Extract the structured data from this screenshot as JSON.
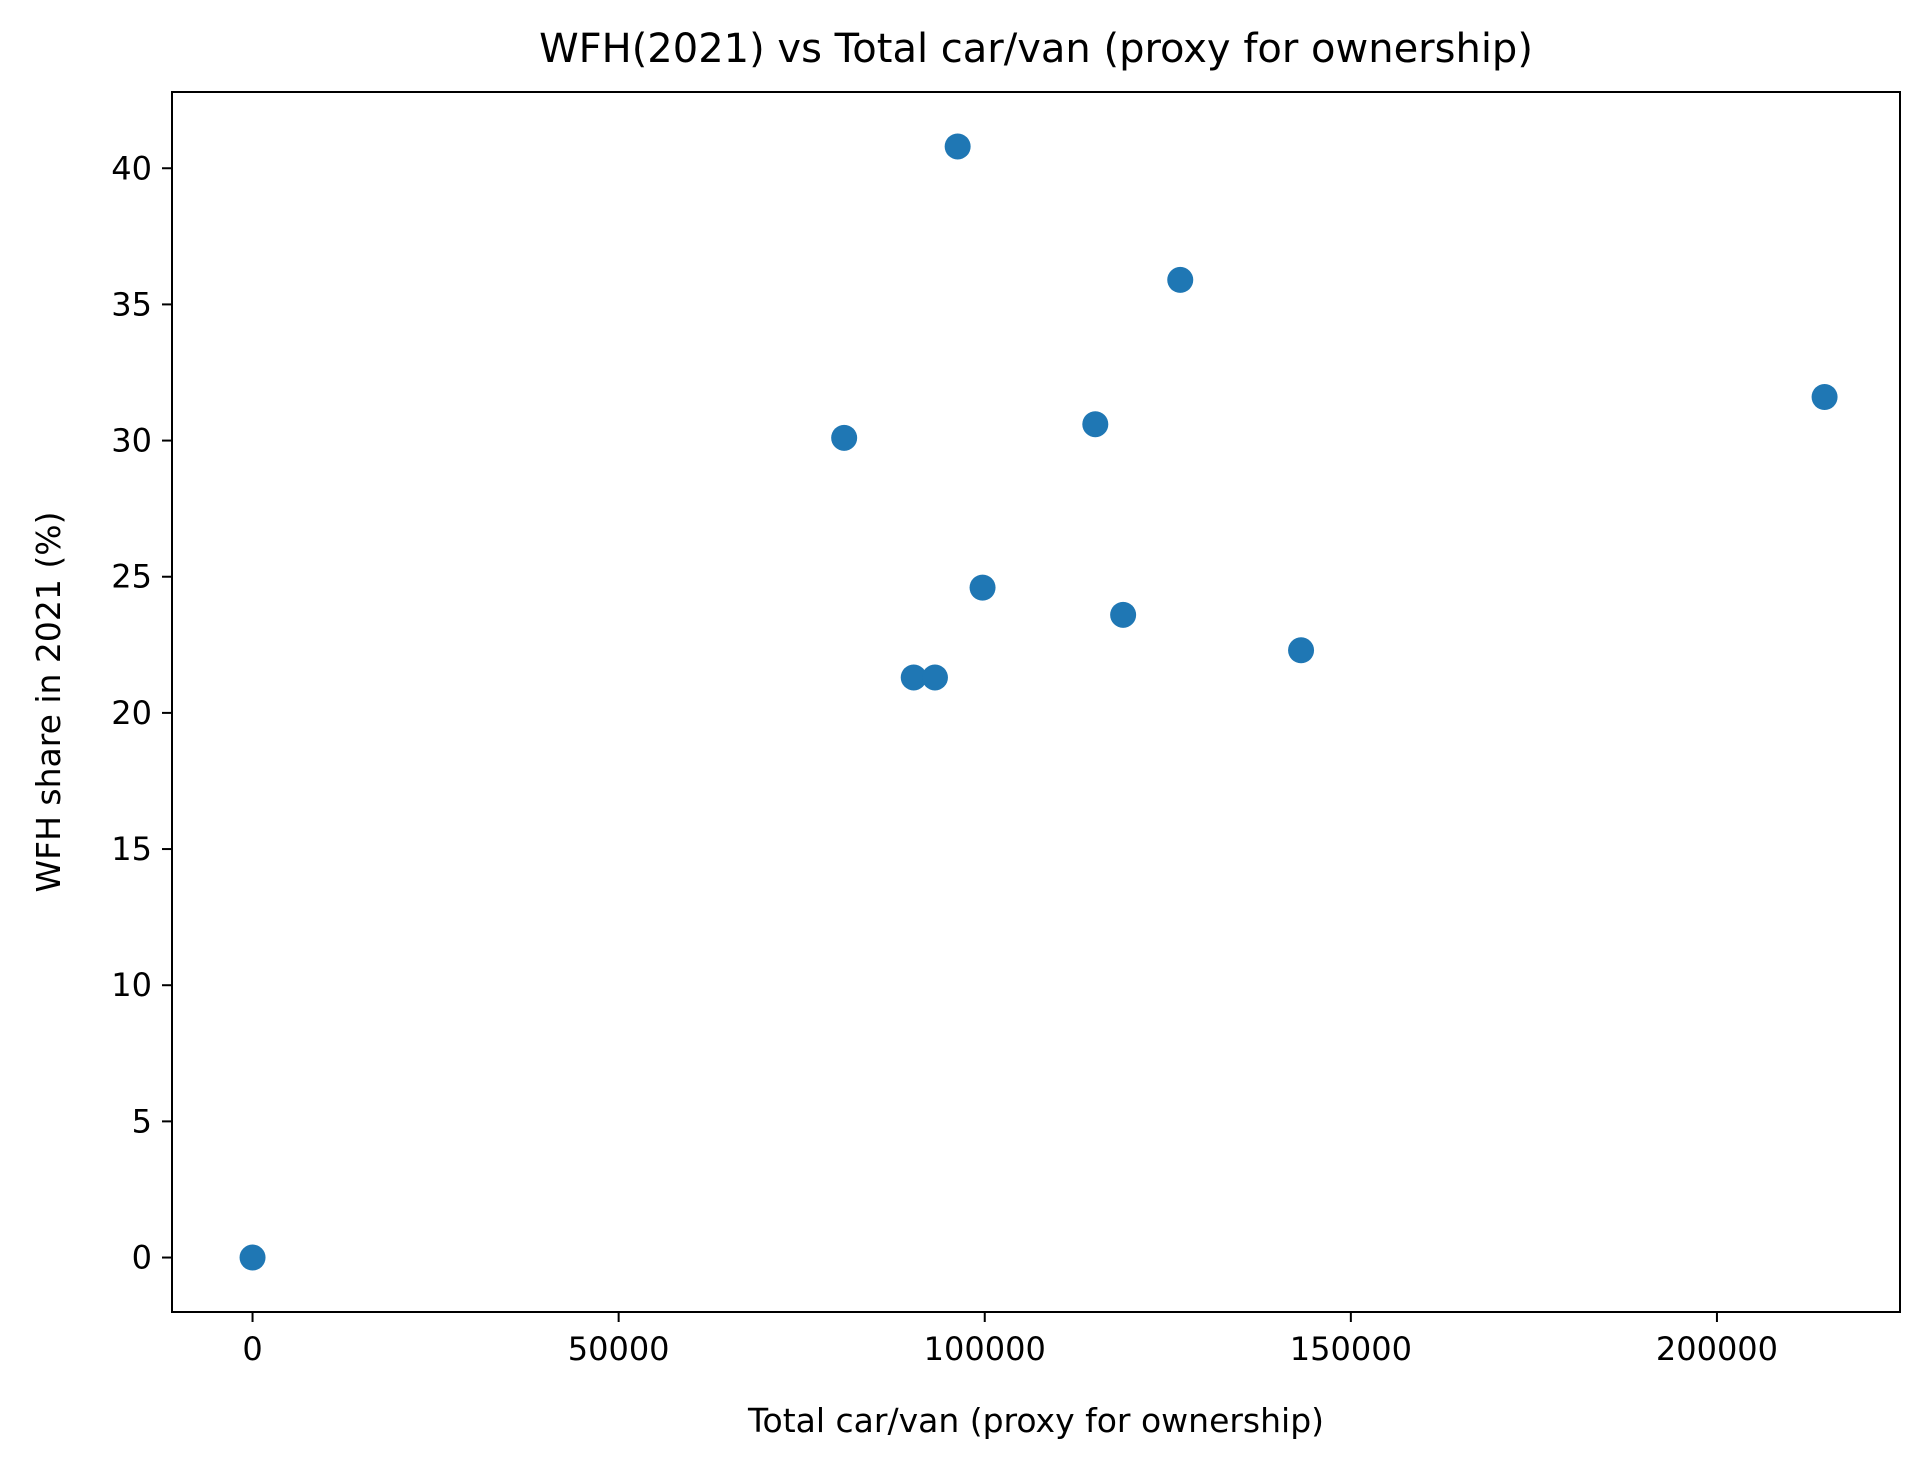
{
  "chart_data": {
    "type": "scatter",
    "title": "WFH(2021) vs Total car/van (proxy for ownership)",
    "xlabel": "Total car/van (proxy for ownership)",
    "ylabel": "WFH share in 2021 (%)",
    "xlim": [
      -11000,
      225000
    ],
    "ylim": [
      -2.0,
      42.8
    ],
    "xticks": [
      0,
      50000,
      100000,
      150000,
      200000
    ],
    "xtick_labels": [
      "0",
      "50000",
      "100000",
      "150000",
      "200000"
    ],
    "yticks": [
      0,
      5,
      10,
      15,
      20,
      25,
      30,
      35,
      40
    ],
    "ytick_labels": [
      "0",
      "5",
      "10",
      "15",
      "20",
      "25",
      "30",
      "35",
      "40"
    ],
    "grid": false,
    "marker_color": "#1f77b4",
    "points": [
      {
        "x": 0,
        "y": 0.0
      },
      {
        "x": 80800,
        "y": 30.1
      },
      {
        "x": 90300,
        "y": 21.3
      },
      {
        "x": 93200,
        "y": 21.3
      },
      {
        "x": 96300,
        "y": 40.8
      },
      {
        "x": 99700,
        "y": 24.6
      },
      {
        "x": 115100,
        "y": 30.6
      },
      {
        "x": 118900,
        "y": 23.6
      },
      {
        "x": 126700,
        "y": 35.9
      },
      {
        "x": 143200,
        "y": 22.3
      },
      {
        "x": 214700,
        "y": 31.6
      }
    ]
  }
}
